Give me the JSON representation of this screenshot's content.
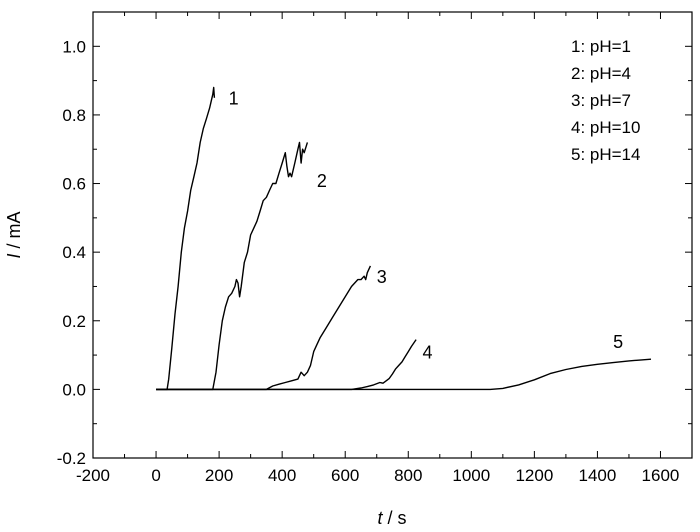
{
  "chart_data": {
    "type": "line",
    "xlabel_var": "t",
    "xlabel_unit": " / s",
    "ylabel_var": "I",
    "ylabel_unit": " / mA",
    "xlim": [
      -200,
      1700
    ],
    "ylim": [
      -0.2,
      1.1
    ],
    "xticks": [
      -200,
      0,
      200,
      400,
      600,
      800,
      1000,
      1200,
      1400,
      1600
    ],
    "yticks": [
      -0.2,
      0.0,
      0.2,
      0.4,
      0.6,
      0.8,
      1.0
    ],
    "xtick_labels": [
      "-200",
      "0",
      "200",
      "400",
      "600",
      "800",
      "1000",
      "1200",
      "1400",
      "1600"
    ],
    "ytick_labels": [
      "-0.2",
      "0.0",
      "0.2",
      "0.4",
      "0.6",
      "0.8",
      "1.0"
    ],
    "grid": false,
    "legend_position": "top-right",
    "legend": [
      "1: pH=1",
      "2: pH=4",
      "3: pH=7",
      "4: pH=10",
      "5: pH=14"
    ],
    "series": [
      {
        "label": "1",
        "label_at": [
          230,
          0.83
        ],
        "x": [
          0,
          35,
          40,
          50,
          60,
          70,
          80,
          90,
          100,
          110,
          120,
          130,
          140,
          150,
          160,
          170,
          175,
          180,
          183,
          185
        ],
        "y": [
          0,
          0,
          0.03,
          0.12,
          0.22,
          0.3,
          0.4,
          0.47,
          0.52,
          0.58,
          0.62,
          0.66,
          0.72,
          0.76,
          0.79,
          0.82,
          0.84,
          0.86,
          0.88,
          0.85
        ]
      },
      {
        "label": "2",
        "label_at": [
          510,
          0.59
        ],
        "x": [
          0,
          180,
          190,
          200,
          210,
          220,
          230,
          240,
          250,
          255,
          260,
          265,
          270,
          280,
          290,
          300,
          310,
          320,
          330,
          340,
          350,
          360,
          370,
          380,
          390,
          400,
          410,
          415,
          420,
          425,
          430,
          440,
          450,
          455,
          460,
          465,
          470,
          480
        ],
        "y": [
          0,
          0,
          0.05,
          0.13,
          0.2,
          0.24,
          0.27,
          0.28,
          0.3,
          0.32,
          0.31,
          0.27,
          0.3,
          0.37,
          0.4,
          0.45,
          0.47,
          0.49,
          0.52,
          0.55,
          0.56,
          0.58,
          0.6,
          0.6,
          0.63,
          0.66,
          0.69,
          0.65,
          0.62,
          0.63,
          0.62,
          0.66,
          0.7,
          0.72,
          0.66,
          0.7,
          0.69,
          0.72
        ]
      },
      {
        "label": "3",
        "label_at": [
          700,
          0.31
        ],
        "x": [
          0,
          350,
          370,
          390,
          410,
          430,
          450,
          460,
          470,
          480,
          490,
          500,
          510,
          520,
          540,
          560,
          580,
          600,
          620,
          640,
          650,
          660,
          665,
          670,
          680
        ],
        "y": [
          0,
          0,
          0.01,
          0.015,
          0.02,
          0.025,
          0.03,
          0.05,
          0.04,
          0.05,
          0.07,
          0.11,
          0.13,
          0.15,
          0.18,
          0.21,
          0.24,
          0.27,
          0.3,
          0.32,
          0.32,
          0.33,
          0.32,
          0.34,
          0.36
        ]
      },
      {
        "label": "4",
        "label_at": [
          845,
          0.09
        ],
        "x": [
          0,
          620,
          650,
          670,
          690,
          710,
          720,
          730,
          740,
          750,
          760,
          770,
          780,
          790,
          800,
          810,
          825
        ],
        "y": [
          0,
          0,
          0.004,
          0.008,
          0.013,
          0.02,
          0.018,
          0.025,
          0.032,
          0.045,
          0.06,
          0.07,
          0.08,
          0.095,
          0.11,
          0.125,
          0.145
        ]
      },
      {
        "label": "5",
        "label_at": [
          1450,
          0.12
        ],
        "x": [
          0,
          1060,
          1100,
          1150,
          1200,
          1250,
          1300,
          1350,
          1400,
          1450,
          1500,
          1540,
          1570
        ],
        "y": [
          0,
          0,
          0.003,
          0.013,
          0.028,
          0.046,
          0.058,
          0.067,
          0.073,
          0.078,
          0.083,
          0.086,
          0.088
        ]
      }
    ]
  }
}
